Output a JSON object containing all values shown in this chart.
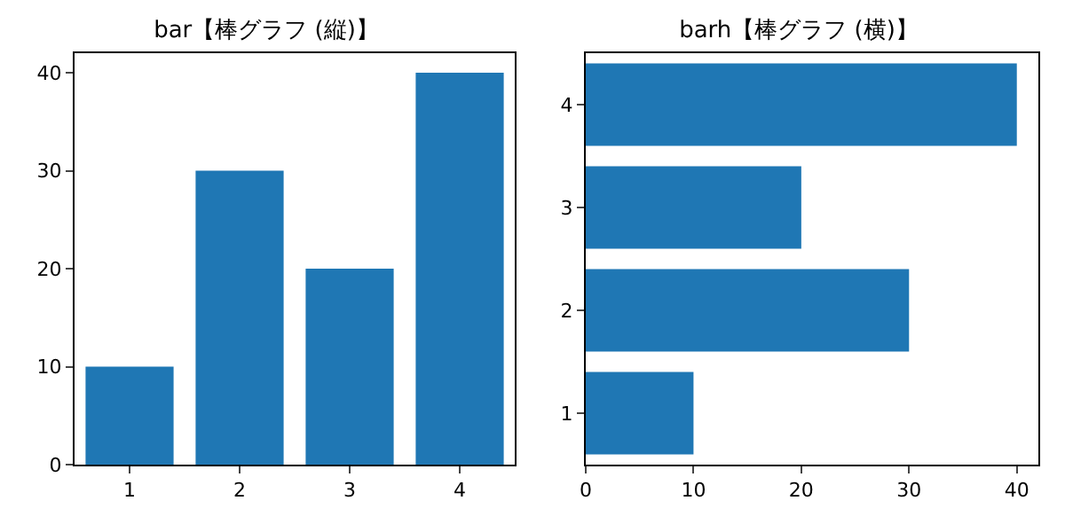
{
  "chart_data": [
    {
      "type": "bar",
      "title": "bar【棒グラフ (縦)】",
      "categories": [
        "1",
        "2",
        "3",
        "4"
      ],
      "values": [
        10,
        30,
        20,
        40
      ],
      "color": "#1f77b4",
      "ylim": [
        0,
        42
      ],
      "yticks": [
        0,
        10,
        20,
        30,
        40
      ],
      "grid": false,
      "legend": false
    },
    {
      "type": "bar",
      "orientation": "horizontal",
      "title": "barh【棒グラフ (横)】",
      "categories": [
        "4",
        "3",
        "2",
        "1"
      ],
      "values": [
        40,
        20,
        30,
        10
      ],
      "color": "#1f77b4",
      "xlim": [
        0,
        42
      ],
      "xticks": [
        0,
        10,
        20,
        30,
        40
      ],
      "grid": false,
      "legend": false
    }
  ]
}
